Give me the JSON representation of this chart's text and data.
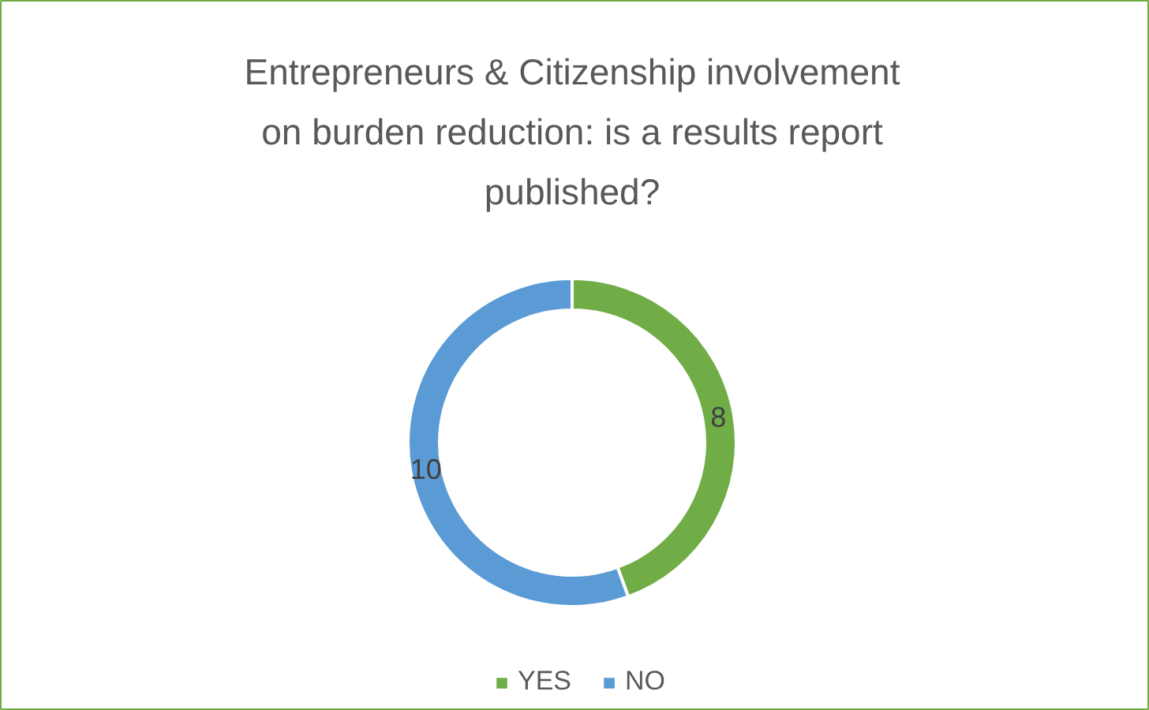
{
  "chart_data": {
    "type": "donut",
    "title": "Entrepreneurs & Citizenship involvement on burden reduction: is a results report published?",
    "categories": [
      "YES",
      "NO"
    ],
    "values": [
      8,
      10
    ],
    "colors": [
      "#70ad47",
      "#5b9bd5"
    ],
    "data_labels": true,
    "legend": "bottom"
  }
}
